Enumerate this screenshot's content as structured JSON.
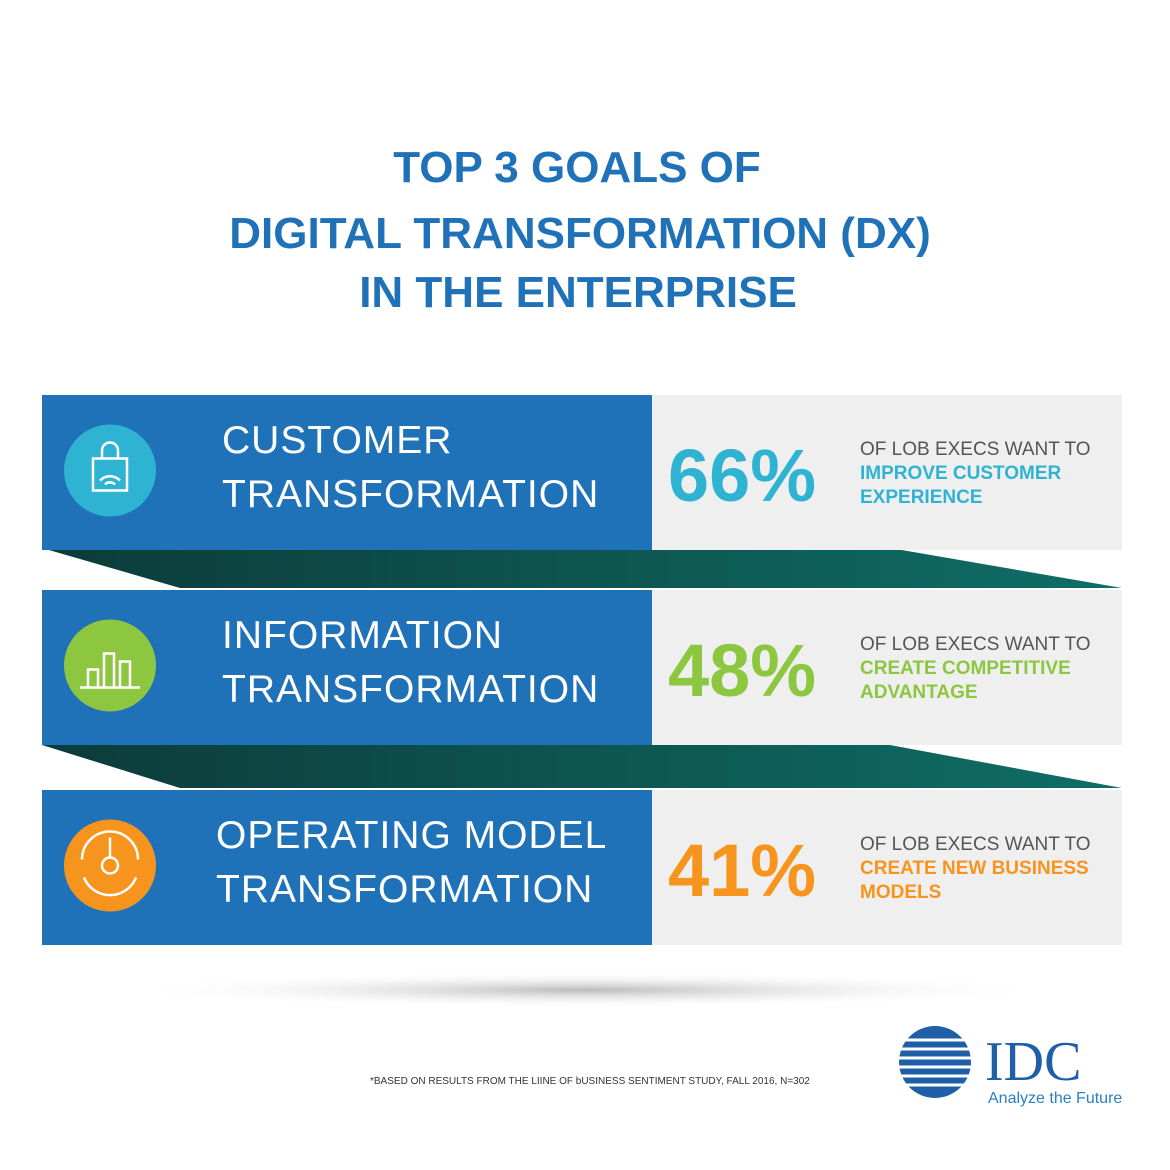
{
  "title": [
    "TOP 3 GOALS OF",
    "DIGITAL TRANSFORMATION (DX)",
    "IN THE ENTERPRISE"
  ],
  "rows": [
    {
      "label": [
        "CUSTOMER",
        "TRANSFORMATION"
      ],
      "percent": "66%",
      "lead": "OF LOB EXECS WANT TO",
      "highlight": [
        "IMPROVE CUSTOMER",
        "EXPERIENCE"
      ],
      "color": "#2fb3d2"
    },
    {
      "label": [
        "INFORMATION",
        "TRANSFORMATION"
      ],
      "percent": "48%",
      "lead": "OF LOB EXECS WANT TO",
      "highlight": [
        "CREATE COMPETITIVE",
        "ADVANTAGE"
      ],
      "color": "#8dc63f"
    },
    {
      "label": [
        "OPERATING MODEL",
        "TRANSFORMATION"
      ],
      "percent": "41%",
      "lead": "OF LOB EXECS WANT TO",
      "highlight": [
        "CREATE NEW BUSINESS",
        "MODELS"
      ],
      "color": "#f7941d"
    }
  ],
  "footnote": "*BASED ON RESULTS FROM THE LIINE OF bUSINESS SENTIMENT STUDY, FALL 2016, N=302",
  "logo": {
    "name": "IDC",
    "tagline": "Analyze the Future"
  }
}
